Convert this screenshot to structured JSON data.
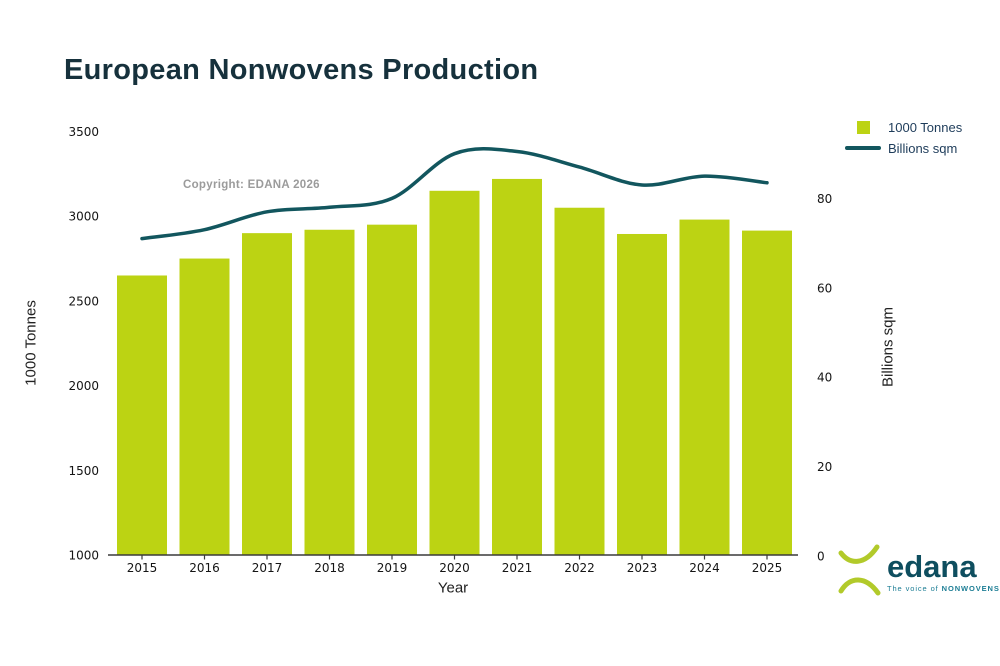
{
  "title": "European Nonwovens Production",
  "copyright": "Copyright: EDANA 2026",
  "legend": {
    "items": [
      {
        "label": "1000 Tonnes",
        "marker": "square"
      },
      {
        "label": "Billions sqm",
        "marker": "line"
      }
    ]
  },
  "logo": {
    "name": "edana",
    "tagline_prefix": "The voice of",
    "tagline_bold": "NONWOVENS"
  },
  "colors": {
    "bar": "#bcd313",
    "line": "#12565e",
    "title_text": "#16313c",
    "legend_text": "#1e3c5a",
    "axis": "#3a3a3a",
    "tick_text": "#151515",
    "copyright_text": "#9b9b9b",
    "logo_green": "#b2ca2a",
    "logo_teal": "#0e4e5f",
    "tagline_teal": "#1d7e95"
  },
  "chart_data": {
    "type": "bar",
    "combo": "bar+line",
    "title": "European Nonwovens Production",
    "xlabel": "Year",
    "ylabel_left": "1000 Tonnes",
    "ylabel_right": "Billions sqm",
    "categories": [
      "2015",
      "2016",
      "2017",
      "2018",
      "2019",
      "2020",
      "2021",
      "2022",
      "2023",
      "2024",
      "2025"
    ],
    "series": [
      {
        "name": "1000 Tonnes",
        "type": "bar",
        "axis": "left",
        "values": [
          2650,
          2750,
          2900,
          2920,
          2950,
          3150,
          3220,
          3050,
          2895,
          2980,
          2915
        ]
      },
      {
        "name": "Billions sqm",
        "type": "line",
        "axis": "right",
        "values": [
          71,
          73,
          77,
          78,
          80,
          90,
          90.5,
          87,
          83,
          85,
          83.5
        ]
      }
    ],
    "left_axis": {
      "min": 1000,
      "max": 3500,
      "ticks": [
        1000,
        1500,
        2000,
        2500,
        3000,
        3500
      ]
    },
    "right_axis": {
      "min": 0,
      "max": 80,
      "ticks": [
        0,
        20,
        40,
        60,
        80
      ]
    },
    "grid": false,
    "legend_position": "top-right"
  }
}
